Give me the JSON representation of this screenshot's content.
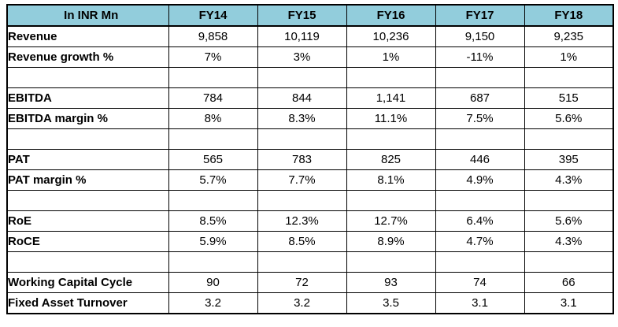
{
  "colors": {
    "header_bg": "#92CDDC",
    "border": "#000000",
    "text": "#000000"
  },
  "chart_data": {
    "type": "table",
    "title": "In INR Mn",
    "columns": [
      "FY14",
      "FY15",
      "FY16",
      "FY17",
      "FY18"
    ],
    "rows": [
      {
        "label": "Revenue",
        "values": [
          "9,858",
          "10,119",
          "10,236",
          "9,150",
          "9,235"
        ]
      },
      {
        "label": "Revenue growth %",
        "values": [
          "7%",
          "3%",
          "1%",
          "-11%",
          "1%"
        ]
      },
      {
        "label": "",
        "values": [
          "",
          "",
          "",
          "",
          ""
        ]
      },
      {
        "label": "EBITDA",
        "values": [
          "784",
          "844",
          "1,141",
          "687",
          "515"
        ]
      },
      {
        "label": "EBITDA margin %",
        "values": [
          "8%",
          "8.3%",
          "11.1%",
          "7.5%",
          "5.6%"
        ]
      },
      {
        "label": "",
        "values": [
          "",
          "",
          "",
          "",
          ""
        ]
      },
      {
        "label": "PAT",
        "values": [
          "565",
          "783",
          "825",
          "446",
          "395"
        ]
      },
      {
        "label": "PAT margin %",
        "values": [
          "5.7%",
          "7.7%",
          "8.1%",
          "4.9%",
          "4.3%"
        ]
      },
      {
        "label": "",
        "values": [
          "",
          "",
          "",
          "",
          ""
        ]
      },
      {
        "label": "RoE",
        "values": [
          "8.5%",
          "12.3%",
          "12.7%",
          "6.4%",
          "5.6%"
        ]
      },
      {
        "label": "RoCE",
        "values": [
          "5.9%",
          "8.5%",
          "8.9%",
          "4.7%",
          "4.3%"
        ]
      },
      {
        "label": "",
        "values": [
          "",
          "",
          "",
          "",
          ""
        ]
      },
      {
        "label": "Working Capital Cycle",
        "values": [
          "90",
          "72",
          "93",
          "74",
          "66"
        ]
      },
      {
        "label": "Fixed Asset Turnover",
        "values": [
          "3.2",
          "3.2",
          "3.5",
          "3.1",
          "3.1"
        ]
      }
    ]
  }
}
